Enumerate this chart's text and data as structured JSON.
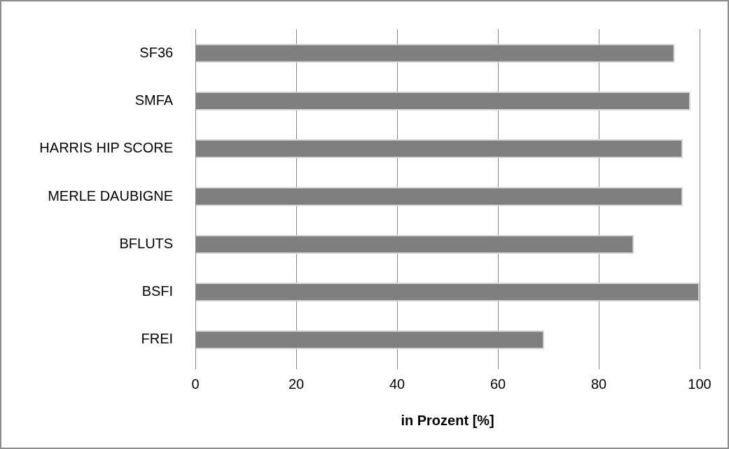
{
  "chart_data": {
    "type": "bar",
    "orientation": "horizontal",
    "xlabel": "in Prozent [%]",
    "categories": [
      "SF36",
      "SMFA",
      "HARRIS HIP SCORE",
      "MERLE DAUBIGNE",
      "BFLUTS",
      "BSFI",
      "FREI"
    ],
    "values": [
      95.1,
      98.2,
      96.7,
      96.7,
      87.0,
      100,
      69.2
    ],
    "color": "#7f7f7f",
    "xlim": [
      0,
      100
    ],
    "xticks": [
      0,
      20,
      40,
      60,
      80,
      100
    ],
    "grid": "x",
    "legend": false
  }
}
